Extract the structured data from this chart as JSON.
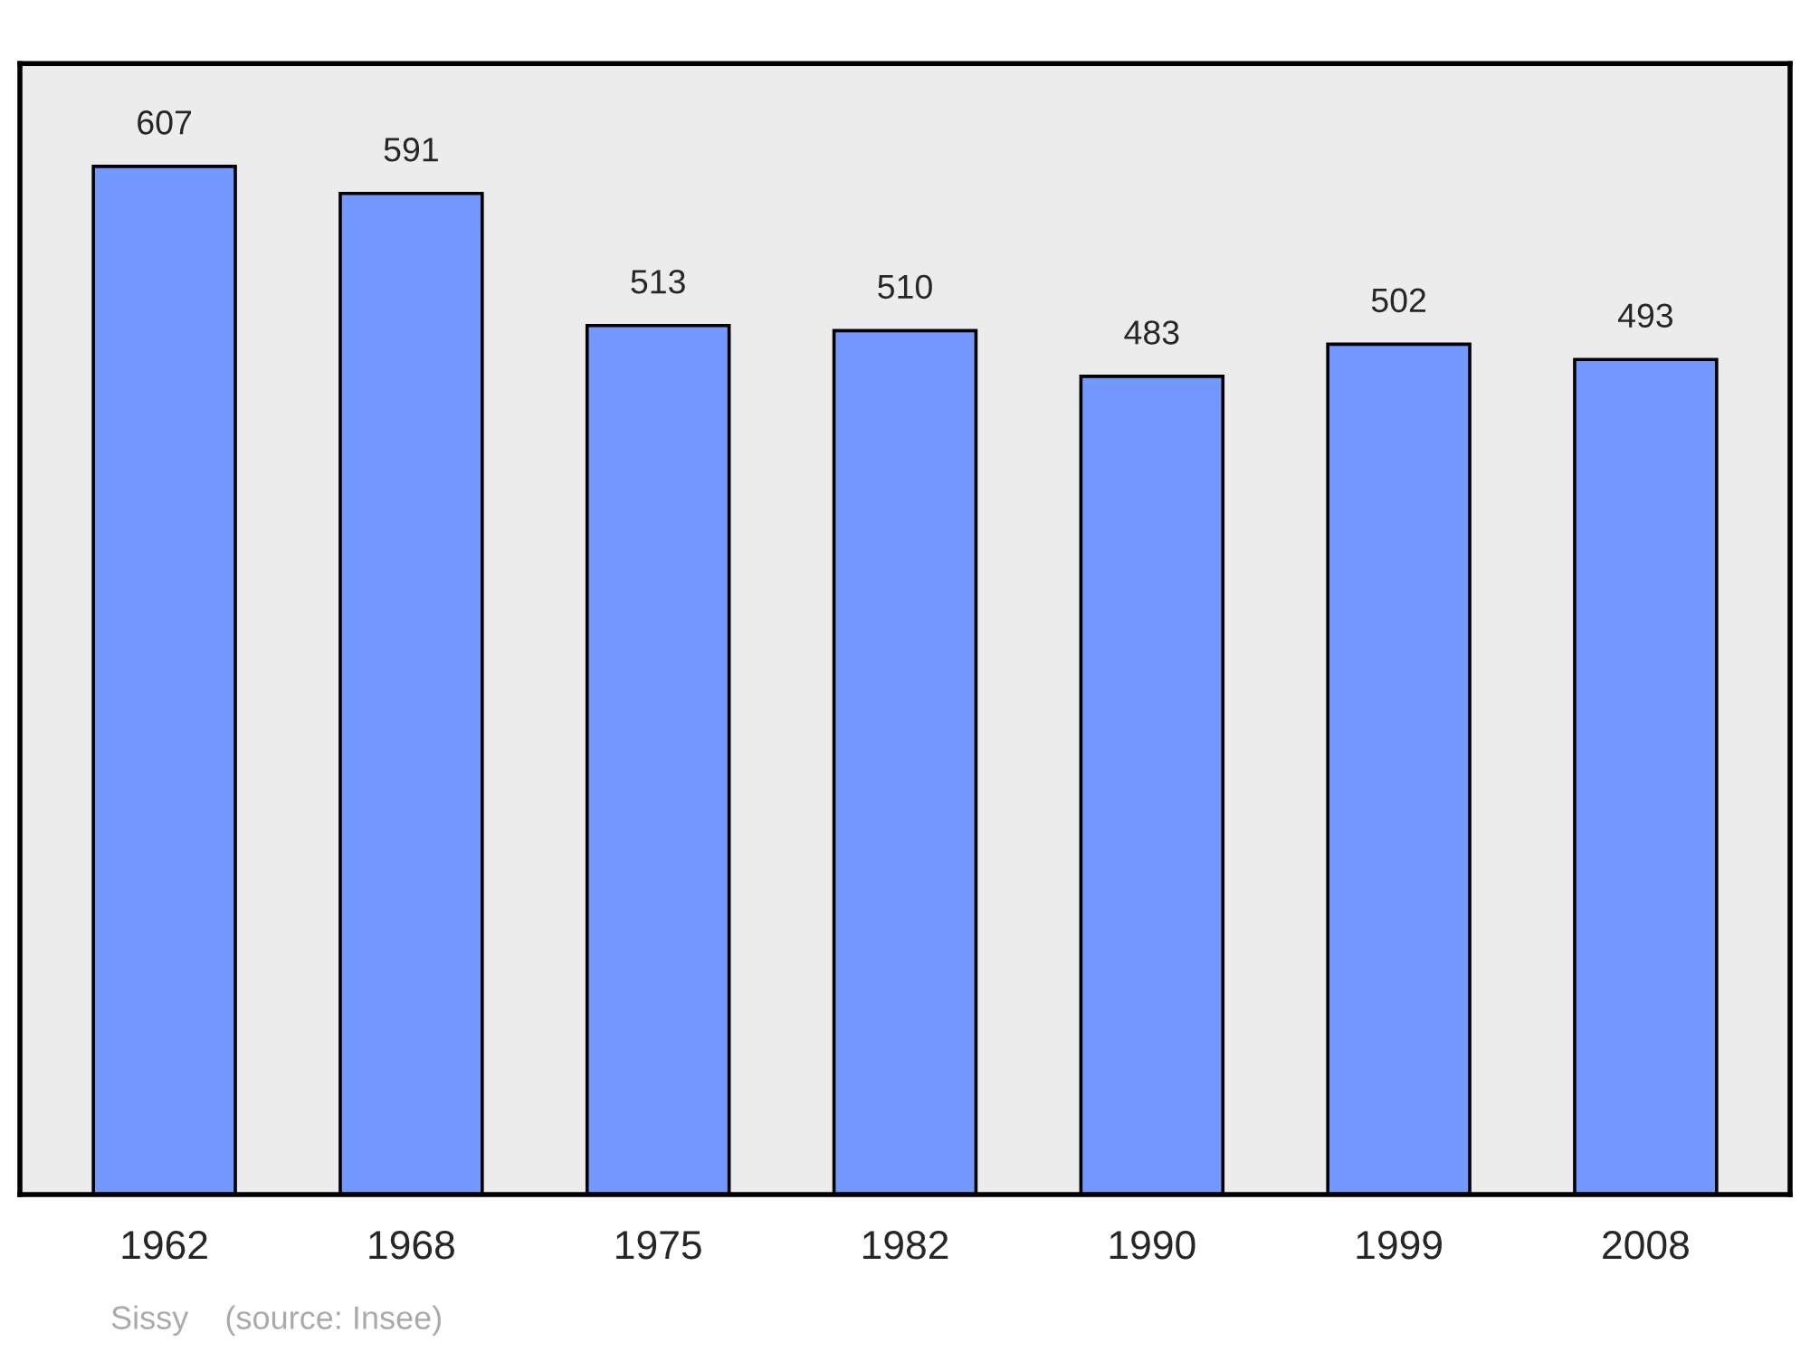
{
  "chart_data": {
    "type": "bar",
    "categories": [
      "1962",
      "1968",
      "1975",
      "1982",
      "1990",
      "1999",
      "2008"
    ],
    "values": [
      607,
      591,
      513,
      510,
      483,
      502,
      493
    ],
    "color": "#7399ff",
    "data_labels": true,
    "grid": false,
    "legend": false,
    "tick_labels": "x",
    "annotations": [
      "Sissy    (source: Insee)"
    ]
  }
}
